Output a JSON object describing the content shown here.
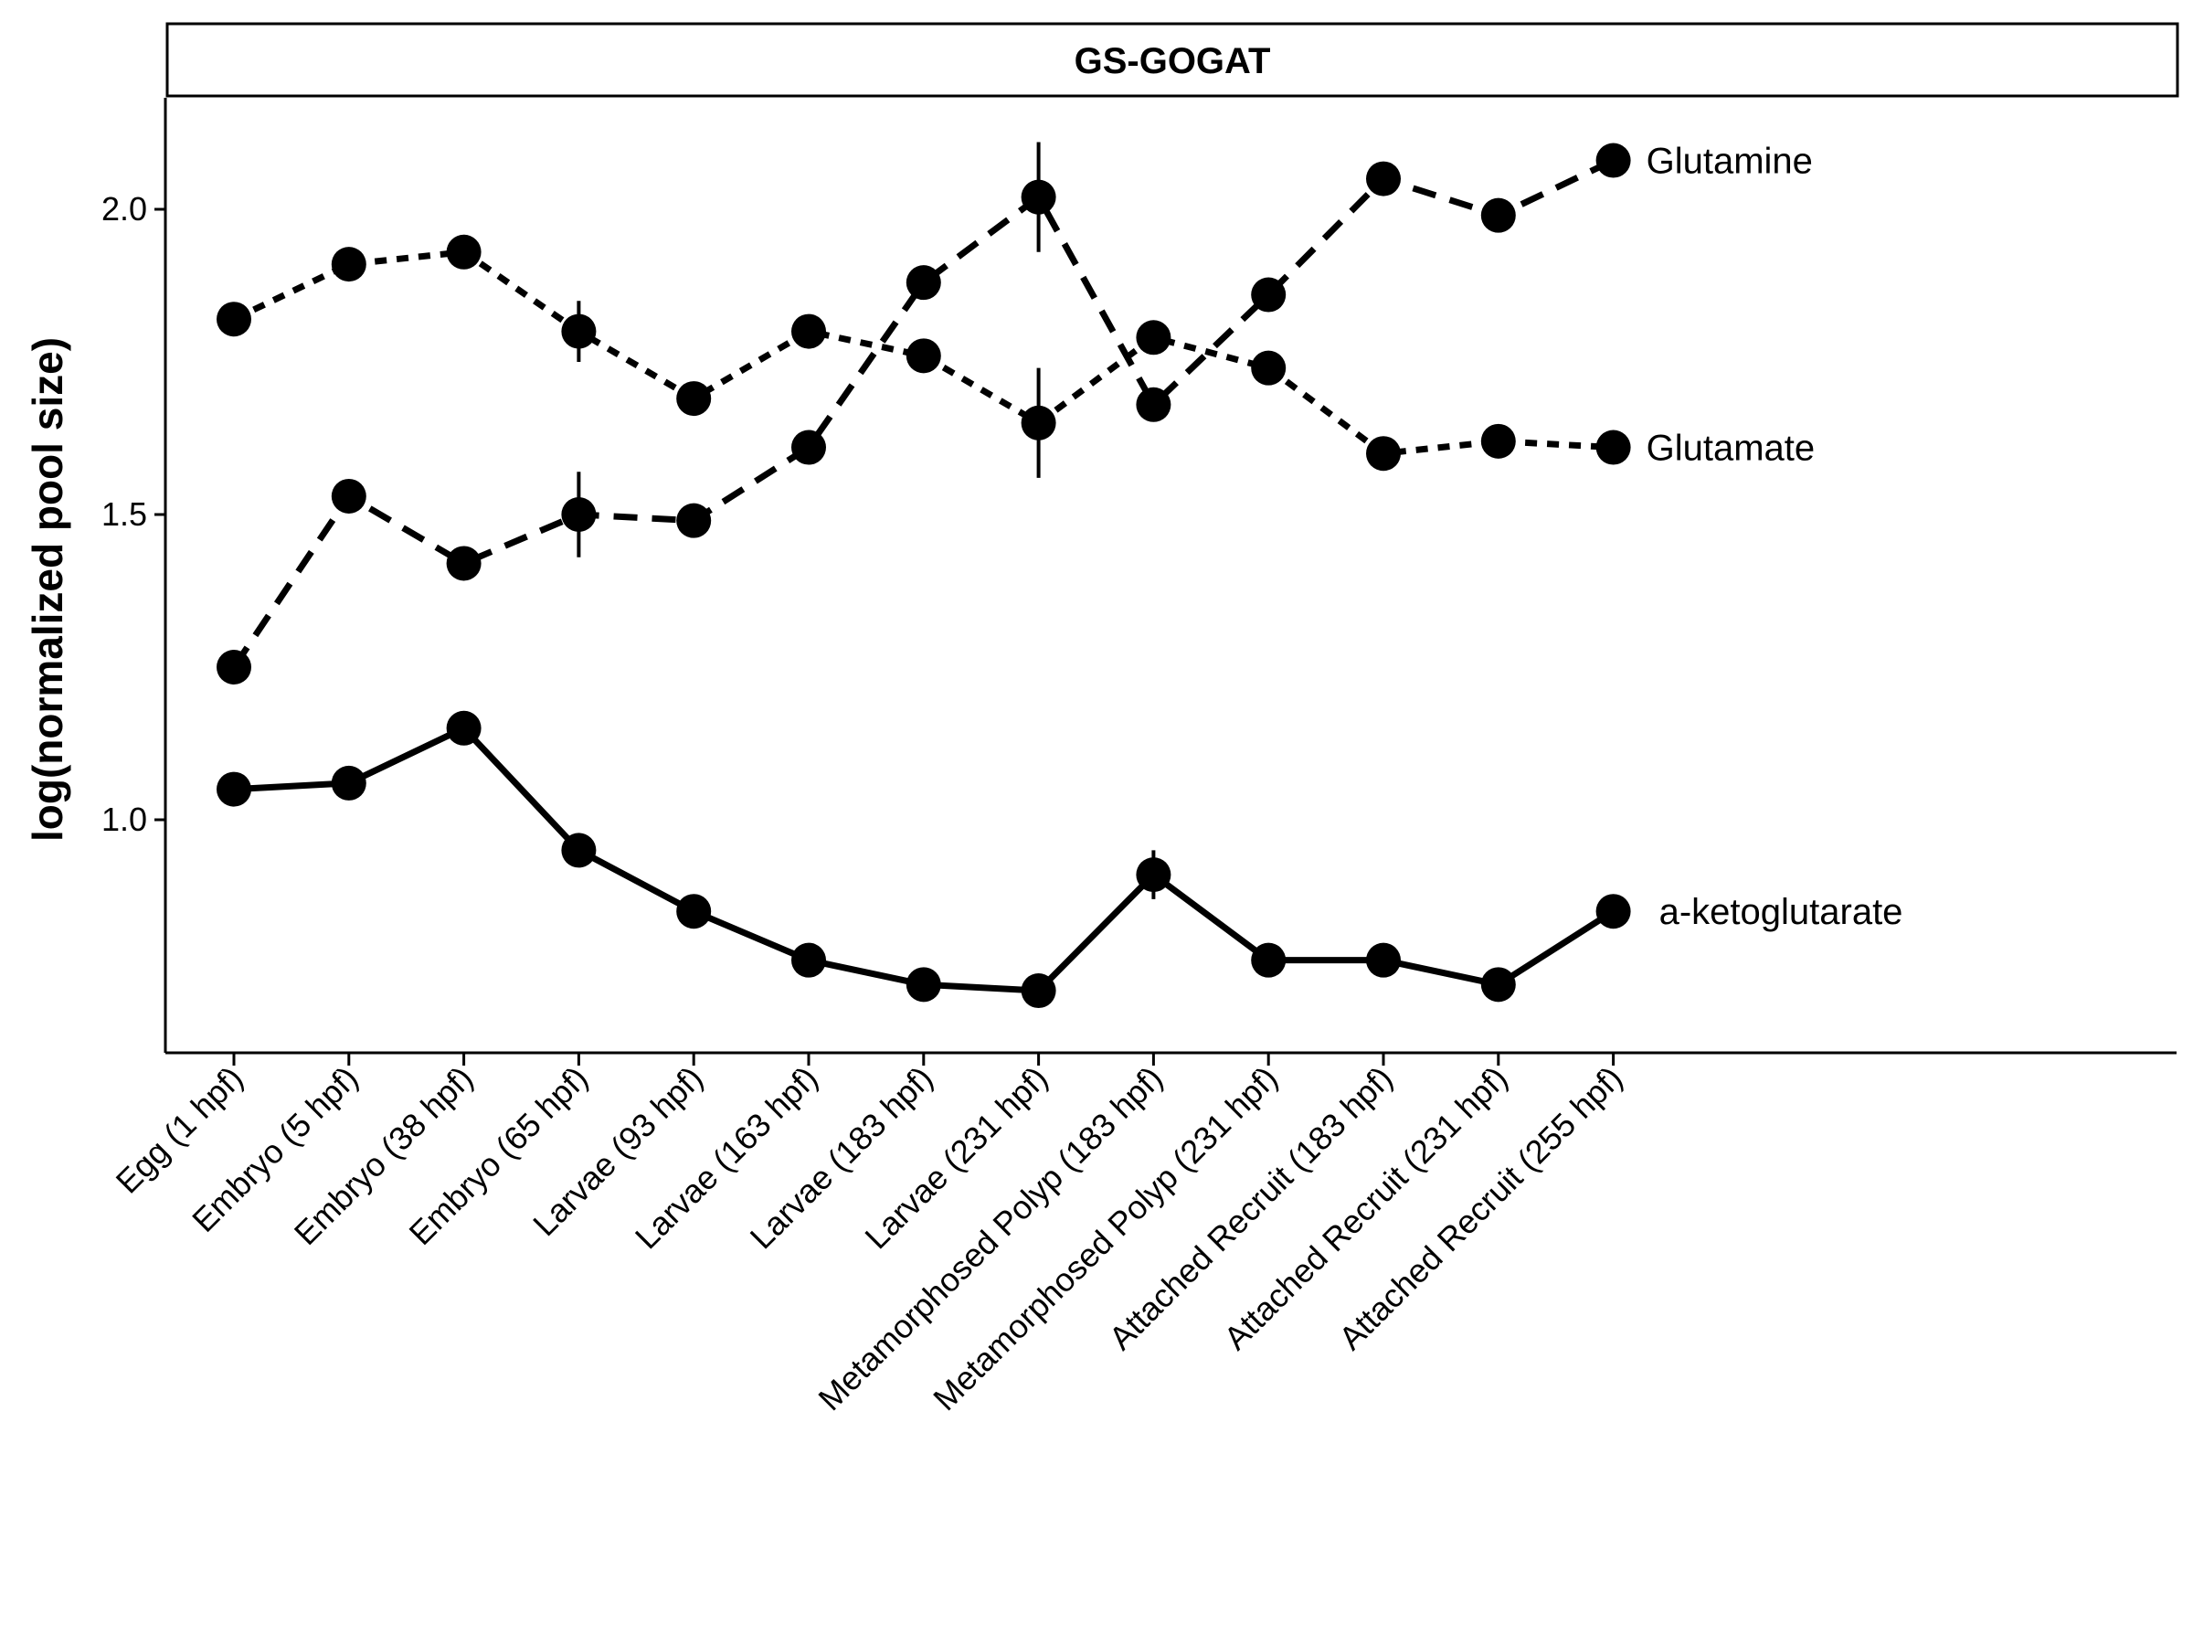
{
  "chart_data": {
    "type": "line",
    "title": "GS-GOGAT",
    "xlabel": "",
    "ylabel": "log(normalized pool size)",
    "ylim": [
      0.72,
      2.2
    ],
    "yticks": [
      "1.0",
      "1.5",
      "2.0"
    ],
    "ytick_values": [
      1.0,
      1.5,
      2.0
    ],
    "categories": [
      "Egg (1 hpf)",
      "Embryo (5 hpf)",
      "Embryo (38 hpf)",
      "Embryo (65 hpf)",
      "Larvae (93 hpf)",
      "Larvae (163 hpf)",
      "Larvae (183 hpf)",
      "Larvae (231 hpf)",
      "Metamorphosed Polyp (183 hpf)",
      "Metamorphosed Polyp (231 hpf)",
      "Attached Recruit (183 hpf)",
      "Attached Recruit (231 hpf)",
      "Attached Recruit (255 hpf)"
    ],
    "grid": false,
    "legend": "none",
    "series": [
      {
        "name": "Glutamine",
        "line_style": "long-dash",
        "values": [
          1.25,
          1.53,
          1.42,
          1.5,
          1.49,
          1.61,
          1.88,
          2.02,
          1.68,
          1.86,
          2.05,
          1.99,
          2.08
        ],
        "error": [
          0,
          0.02,
          0.01,
          0.07,
          0.01,
          0.01,
          0.02,
          0.09,
          0.02,
          0.01,
          0.01,
          0.01,
          0.01
        ]
      },
      {
        "name": "Glutamate",
        "line_style": "short-dash",
        "values": [
          1.82,
          1.91,
          1.93,
          1.8,
          1.69,
          1.8,
          1.76,
          1.65,
          1.79,
          1.74,
          1.6,
          1.62,
          1.61
        ],
        "error": [
          0.01,
          0.01,
          0.01,
          0.05,
          0.02,
          0.01,
          0.02,
          0.09,
          0.01,
          0.01,
          0.01,
          0.01,
          0.01
        ]
      },
      {
        "name": "a-ketoglutarate",
        "line_style": "solid",
        "values": [
          1.05,
          1.06,
          1.15,
          0.95,
          0.85,
          0.77,
          0.73,
          0.72,
          0.91,
          0.77,
          0.77,
          0.73,
          0.85
        ],
        "error": [
          0.01,
          0.01,
          0.01,
          0.01,
          0.01,
          0.01,
          0.01,
          0.01,
          0.04,
          0.01,
          0.01,
          0.01,
          0.01
        ]
      }
    ],
    "colors": {
      "ink": "#000000",
      "strip_fill": "#ffffff"
    }
  }
}
